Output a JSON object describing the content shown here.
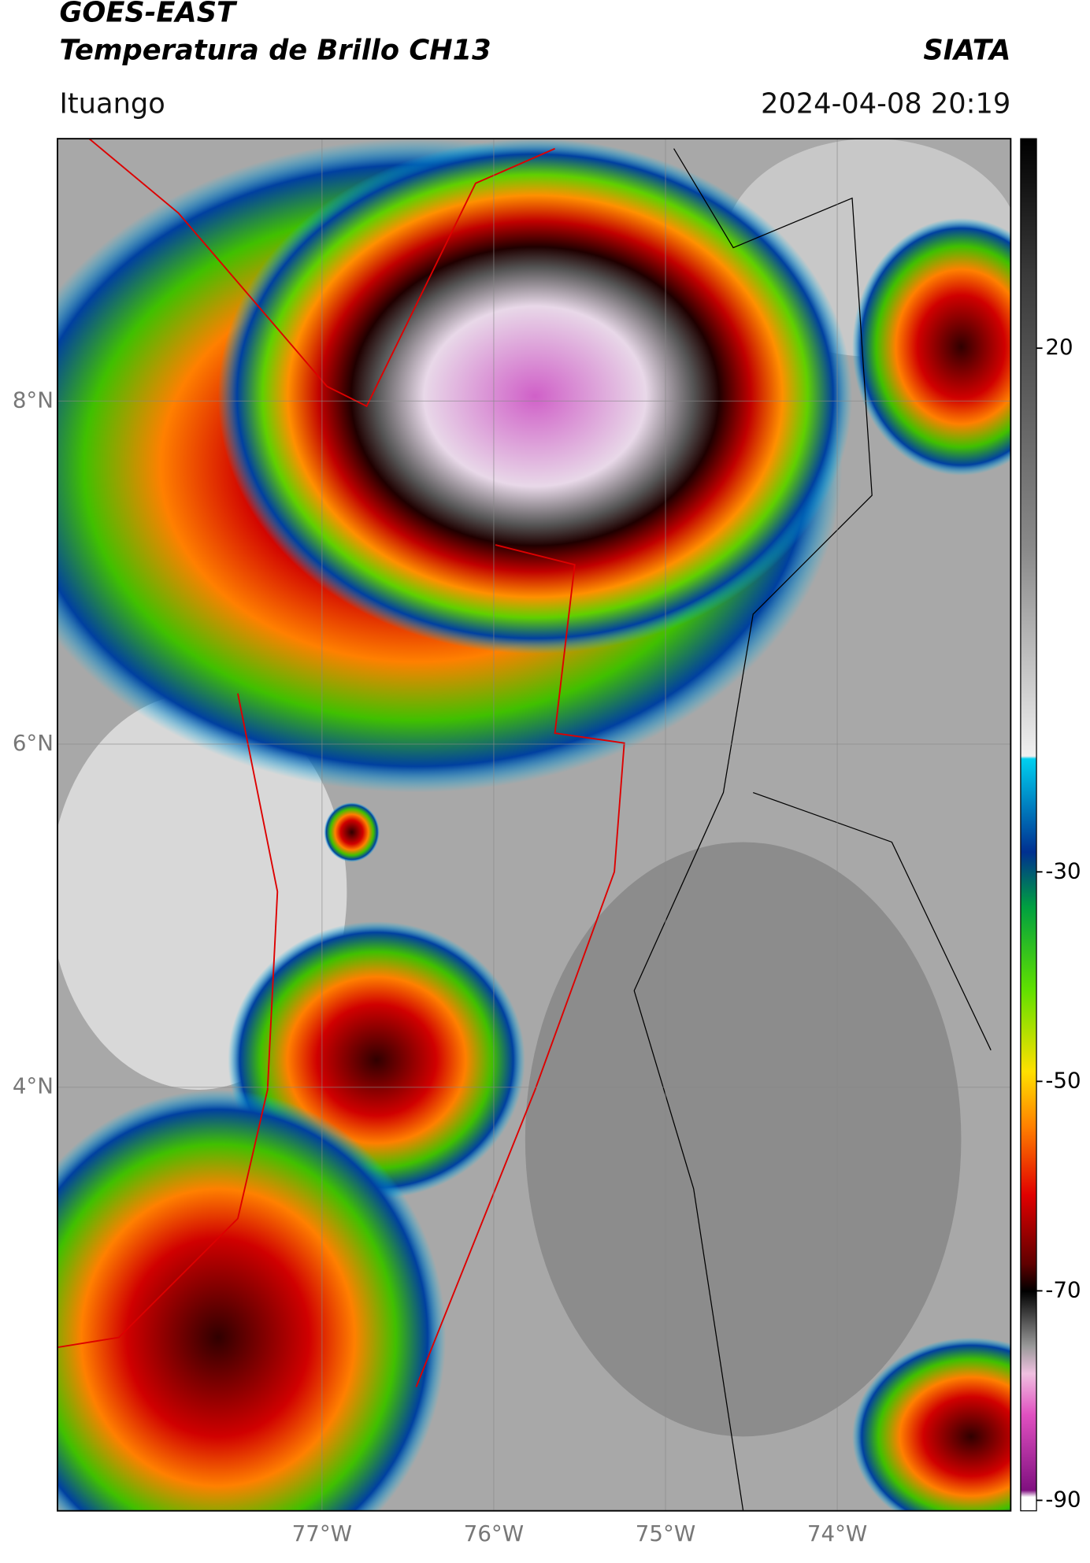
{
  "map": {
    "title": "GOES-EAST",
    "subtitle": "Temperatura de Brillo CH13",
    "agency": "SIATA",
    "location": "Ituango",
    "datetime": "2024-04-08 20:19",
    "lonlim": [
      -78.54,
      -72.99
    ],
    "latlim": [
      1.53,
      9.53
    ],
    "lon_ticks": [
      {
        "value": -77,
        "label": "77°W"
      },
      {
        "value": -76,
        "label": "76°W"
      },
      {
        "value": -75,
        "label": "75°W"
      },
      {
        "value": -74,
        "label": "74°W"
      }
    ],
    "lat_ticks": [
      {
        "value": 8,
        "label": "8°N"
      },
      {
        "value": 6,
        "label": "6°N"
      },
      {
        "value": 4,
        "label": "4°N"
      }
    ],
    "grid": true,
    "colorbar": {
      "lim": [
        -91,
        40
      ],
      "ticks": [
        20,
        -30,
        -50,
        -70,
        -90
      ]
    }
  }
}
